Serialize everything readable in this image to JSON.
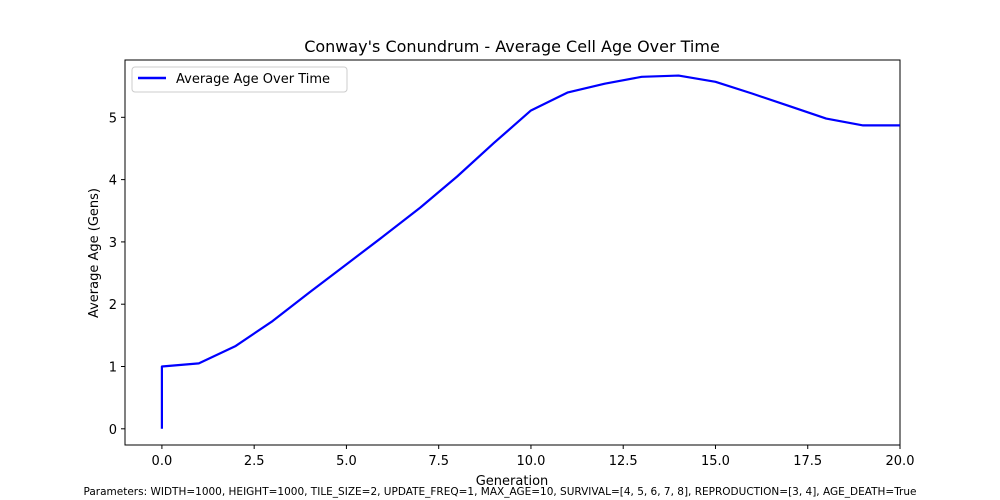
{
  "chart_data": {
    "type": "line",
    "title": "Conway's Conundrum - Average Cell Age Over Time",
    "xlabel": "Generation",
    "ylabel": "Average Age (Gens)",
    "xlim": [
      -1.0,
      20.0
    ],
    "ylim": [
      -0.26,
      5.92
    ],
    "xticks": [
      0.0,
      2.5,
      5.0,
      7.5,
      10.0,
      12.5,
      15.0,
      17.5,
      20.0
    ],
    "xtick_labels": [
      "0.0",
      "2.5",
      "5.0",
      "7.5",
      "10.0",
      "12.5",
      "15.0",
      "17.5",
      "20.0"
    ],
    "yticks": [
      0,
      1,
      2,
      3,
      4,
      5
    ],
    "ytick_labels": [
      "0",
      "1",
      "2",
      "3",
      "4",
      "5"
    ],
    "grid": false,
    "legend_placement": "top-left",
    "series": [
      {
        "name": "Average Age Over Time",
        "color": "#0000ff",
        "x": [
          0,
          0,
          1,
          2,
          3,
          4,
          5,
          6,
          7,
          8,
          9,
          10,
          11,
          12,
          13,
          14,
          15,
          16,
          17,
          18,
          19,
          20
        ],
        "y": [
          0,
          1.0,
          1.05,
          1.33,
          1.73,
          2.19,
          2.64,
          3.09,
          3.55,
          4.05,
          4.59,
          5.11,
          5.4,
          5.54,
          5.65,
          5.67,
          5.57,
          5.38,
          5.18,
          4.98,
          4.87,
          4.87
        ]
      }
    ]
  },
  "footer": {
    "parameters": "Parameters: WIDTH=1000, HEIGHT=1000, TILE_SIZE=2, UPDATE_FREQ=1, MAX_AGE=10, SURVIVAL=[4, 5, 6, 7, 8], REPRODUCTION=[3, 4], AGE_DEATH=True"
  }
}
